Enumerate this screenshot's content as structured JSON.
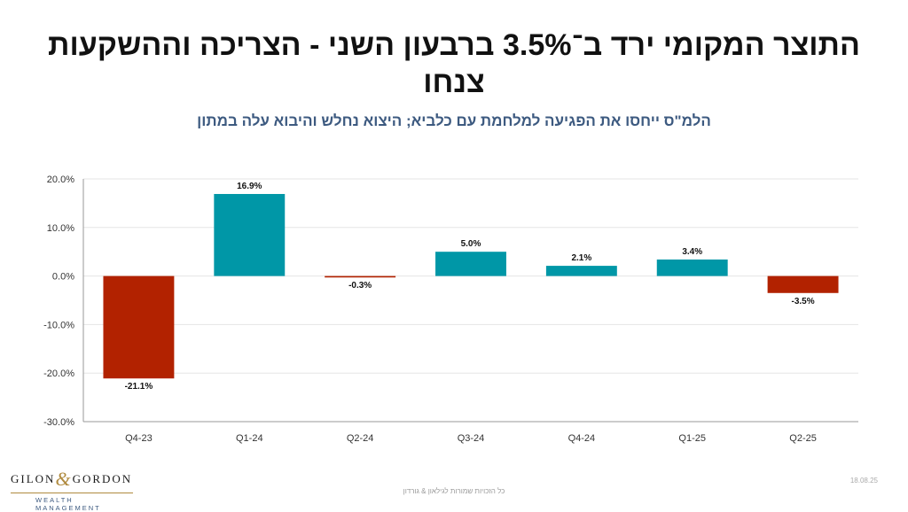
{
  "header": {
    "title": "התוצר המקומי ירד ב־3.5% ברבעון השני - הצריכה וההשקעות צנחו",
    "subtitle": "הלמ\"ס ייחסו את הפגיעה למלחמת עם כלביא; היצוא נחלש והיבוא עלה במתון"
  },
  "chart_data": {
    "type": "bar",
    "title": "",
    "xlabel": "",
    "ylabel": "",
    "categories": [
      "Q4-23",
      "Q1-24",
      "Q2-24",
      "Q3-24",
      "Q4-24",
      "Q1-25",
      "Q2-25"
    ],
    "values": [
      -21.1,
      16.9,
      -0.3,
      5.0,
      2.1,
      3.4,
      -3.5
    ],
    "data_labels": [
      "-21.1%",
      "16.9%",
      "-0.3%",
      "5.0%",
      "2.1%",
      "3.4%",
      "-3.5%"
    ],
    "ylim": [
      -30,
      20
    ],
    "yticks": [
      20,
      10,
      0,
      -10,
      -20,
      -30
    ],
    "ytick_labels": [
      "20.0%",
      "10.0%",
      "0.0%",
      "-10.0%",
      "-20.0%",
      "-30.0%"
    ],
    "grid": true,
    "legend": "none",
    "colors": {
      "positive": "#0097a7",
      "negative": "#b22200",
      "grid": "#e5e5e5",
      "axis": "#999999",
      "text": "#111111"
    }
  },
  "logo": {
    "left": "GILON",
    "amp": "&",
    "right": "GORDON",
    "sub": "WEALTH MANAGEMENT"
  },
  "footer": {
    "note": "כל הזכויות שמורות לגילאון & גורדון",
    "date": "18.08.25"
  }
}
